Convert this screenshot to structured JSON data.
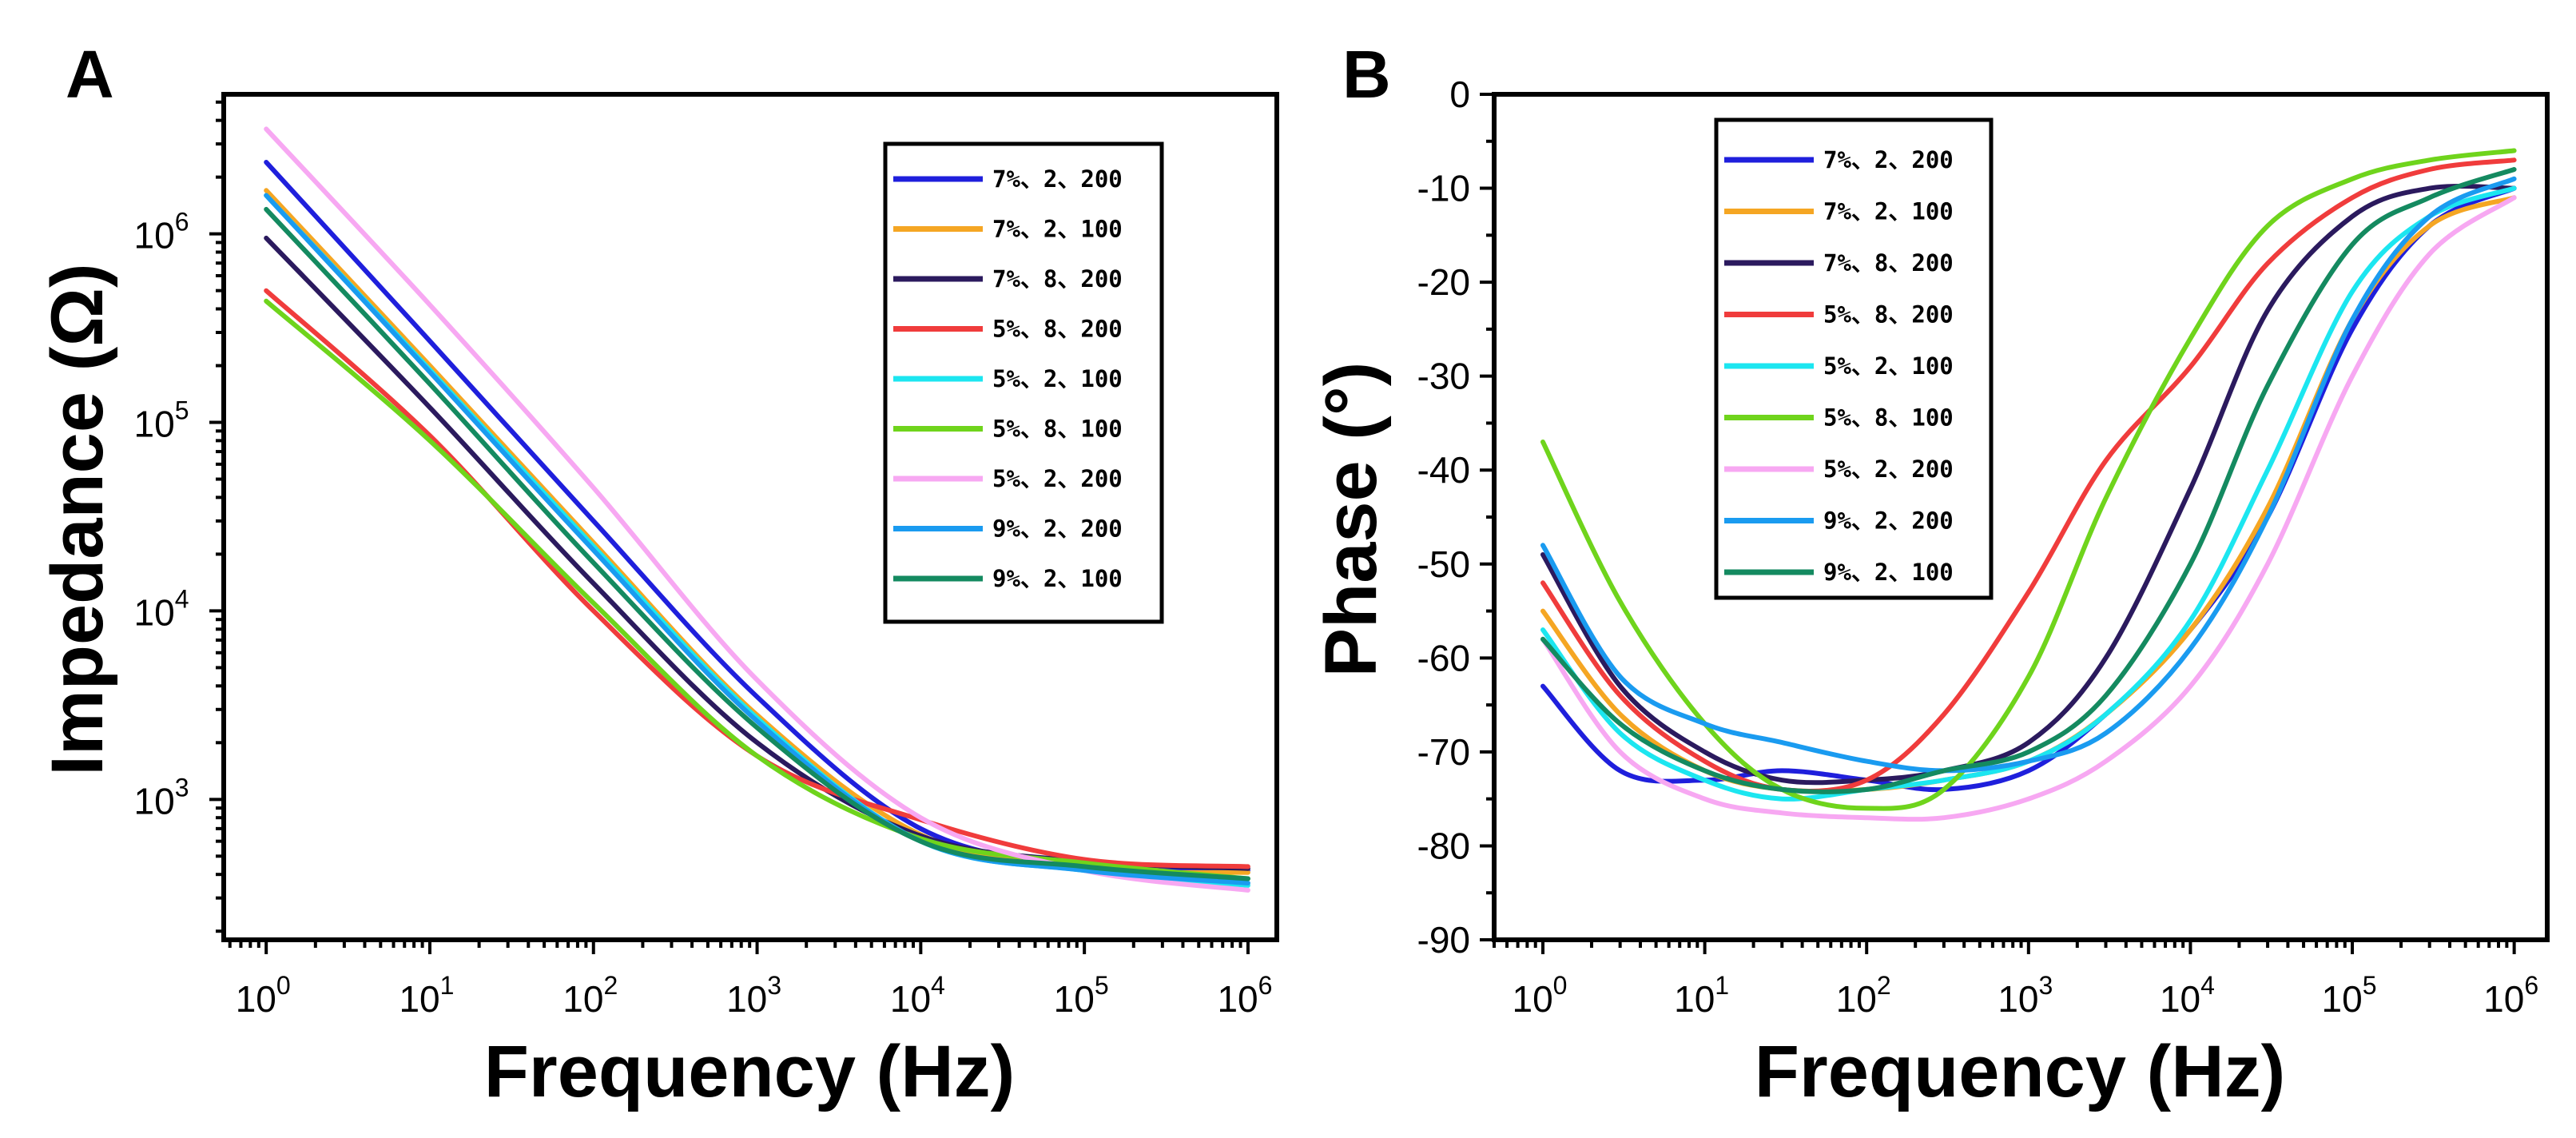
{
  "chart_data": [
    {
      "panel": "A",
      "type": "line",
      "xscale": "log",
      "yscale": "log",
      "xlabel": "Frequency (Hz)",
      "ylabel": "Impedance (Ω)",
      "xlim": [
        0.55,
        1500000
      ],
      "ylim": [
        180,
        5500000
      ],
      "xticks": [
        {
          "v": 1,
          "base": "10",
          "exp": "0"
        },
        {
          "v": 10,
          "base": "10",
          "exp": "1"
        },
        {
          "v": 100,
          "base": "10",
          "exp": "2"
        },
        {
          "v": 1000,
          "base": "10",
          "exp": "3"
        },
        {
          "v": 10000,
          "base": "10",
          "exp": "4"
        },
        {
          "v": 100000,
          "base": "10",
          "exp": "5"
        },
        {
          "v": 1000000,
          "base": "10",
          "exp": "6"
        }
      ],
      "yticks": [
        {
          "v": 1000,
          "base": "10",
          "exp": "3"
        },
        {
          "v": 10000,
          "base": "10",
          "exp": "4"
        },
        {
          "v": 100000,
          "base": "10",
          "exp": "5"
        },
        {
          "v": 1000000,
          "base": "10",
          "exp": "6"
        }
      ],
      "legend_position": "top-right",
      "series": [
        {
          "name": "7%、2、200",
          "color": "#1f1fdc",
          "x": [
            1,
            10,
            100,
            1000,
            10000,
            100000,
            1000000
          ],
          "values": [
            2400000,
            270000,
            30000,
            3500,
            700,
            440,
            420
          ]
        },
        {
          "name": "7%、2、100",
          "color": "#f5a623",
          "x": [
            1,
            10,
            100,
            1000,
            10000,
            100000,
            1000000
          ],
          "values": [
            1700000,
            200000,
            23000,
            2800,
            650,
            430,
            410
          ]
        },
        {
          "name": "7%、8、200",
          "color": "#2b1a5e",
          "x": [
            1,
            10,
            100,
            1000,
            10000,
            100000,
            1000000
          ],
          "values": [
            950000,
            120000,
            14000,
            2000,
            640,
            470,
            430
          ]
        },
        {
          "name": "5%、8、200",
          "color": "#f03c3c",
          "x": [
            1,
            10,
            100,
            1000,
            10000,
            100000,
            1000000
          ],
          "values": [
            500000,
            85000,
            10000,
            1700,
            780,
            480,
            440
          ]
        },
        {
          "name": "5%、2、100",
          "color": "#1ce6f0",
          "x": [
            1,
            10,
            100,
            1000,
            10000,
            100000,
            1000000
          ],
          "values": [
            1600000,
            190000,
            22000,
            2700,
            600,
            420,
            350
          ]
        },
        {
          "name": "5%、8、100",
          "color": "#6fd41c",
          "x": [
            1,
            10,
            100,
            1000,
            10000,
            100000,
            1000000
          ],
          "values": [
            440000,
            80000,
            11000,
            1700,
            620,
            460,
            380
          ]
        },
        {
          "name": "5%、2、200",
          "color": "#f7a8f2",
          "x": [
            1,
            10,
            100,
            1000,
            10000,
            100000,
            1000000
          ],
          "values": [
            3600000,
            420000,
            45000,
            4300,
            800,
            420,
            330
          ]
        },
        {
          "name": "9%、2、200",
          "color": "#1a9bf0",
          "x": [
            1,
            10,
            100,
            1000,
            10000,
            100000,
            1000000
          ],
          "values": [
            1600000,
            185000,
            21000,
            2600,
            600,
            420,
            360
          ]
        },
        {
          "name": "9%、2、100",
          "color": "#148a60",
          "x": [
            1,
            10,
            100,
            1000,
            10000,
            100000,
            1000000
          ],
          "values": [
            1350000,
            160000,
            18000,
            2400,
            600,
            440,
            380
          ]
        }
      ]
    },
    {
      "panel": "B",
      "type": "line",
      "xscale": "log",
      "yscale": "linear",
      "xlabel": "Frequency (Hz)",
      "ylabel": "Phase (°)",
      "xlim": [
        0.5,
        1600000
      ],
      "ylim": [
        -90,
        0
      ],
      "xticks": [
        {
          "v": 1,
          "base": "10",
          "exp": "0"
        },
        {
          "v": 10,
          "base": "10",
          "exp": "1"
        },
        {
          "v": 100,
          "base": "10",
          "exp": "2"
        },
        {
          "v": 1000,
          "base": "10",
          "exp": "3"
        },
        {
          "v": 10000,
          "base": "10",
          "exp": "4"
        },
        {
          "v": 100000,
          "base": "10",
          "exp": "5"
        },
        {
          "v": 1000000,
          "base": "10",
          "exp": "6"
        }
      ],
      "yticks": [
        {
          "v": 0,
          "label": "0"
        },
        {
          "v": -10,
          "label": "-10"
        },
        {
          "v": -20,
          "label": "-20"
        },
        {
          "v": -30,
          "label": "-30"
        },
        {
          "v": -40,
          "label": "-40"
        },
        {
          "v": -50,
          "label": "-50"
        },
        {
          "v": -60,
          "label": "-60"
        },
        {
          "v": -70,
          "label": "-70"
        },
        {
          "v": -80,
          "label": "-80"
        },
        {
          "v": -90,
          "label": "-90"
        }
      ],
      "legend_position": "top-left",
      "series": [
        {
          "name": "7%、2、200",
          "color": "#1f1fdc",
          "x": [
            1,
            3,
            10,
            30,
            100,
            300,
            1000,
            3000,
            10000,
            30000,
            100000,
            300000,
            1000000
          ],
          "values": [
            -63,
            -72,
            -73,
            -72,
            -73,
            -74,
            -72,
            -66,
            -57,
            -45,
            -25,
            -14,
            -10
          ]
        },
        {
          "name": "7%、2、100",
          "color": "#f5a623",
          "x": [
            1,
            3,
            10,
            30,
            100,
            300,
            1000,
            3000,
            10000,
            30000,
            100000,
            300000,
            1000000
          ],
          "values": [
            -55,
            -66,
            -72,
            -74,
            -74,
            -73,
            -71,
            -66,
            -57,
            -44,
            -24,
            -14,
            -11
          ]
        },
        {
          "name": "7%、8、200",
          "color": "#2b1a5e",
          "x": [
            1,
            3,
            10,
            30,
            100,
            300,
            1000,
            3000,
            10000,
            30000,
            100000,
            300000,
            1000000
          ],
          "values": [
            -49,
            -63,
            -70,
            -73,
            -73,
            -72,
            -69,
            -60,
            -42,
            -23,
            -13,
            -10,
            -10
          ]
        },
        {
          "name": "5%、8、200",
          "color": "#f03c3c",
          "x": [
            1,
            3,
            10,
            30,
            100,
            300,
            1000,
            3000,
            10000,
            30000,
            100000,
            300000,
            1000000
          ],
          "values": [
            -52,
            -64,
            -71,
            -74,
            -73,
            -66,
            -53,
            -39,
            -29,
            -18,
            -11,
            -8,
            -7
          ]
        },
        {
          "name": "5%、2、100",
          "color": "#1ce6f0",
          "x": [
            1,
            3,
            10,
            30,
            100,
            300,
            1000,
            3000,
            10000,
            30000,
            100000,
            300000,
            1000000
          ],
          "values": [
            -57,
            -68,
            -73,
            -75,
            -74,
            -73,
            -71,
            -66,
            -56,
            -40,
            -21,
            -13,
            -10
          ]
        },
        {
          "name": "5%、8、100",
          "color": "#6fd41c",
          "x": [
            1,
            3,
            10,
            30,
            100,
            300,
            1000,
            3000,
            10000,
            30000,
            100000,
            300000,
            1000000
          ],
          "values": [
            -37,
            -54,
            -67,
            -74,
            -76,
            -74,
            -62,
            -43,
            -26,
            -14,
            -9,
            -7,
            -6
          ]
        },
        {
          "name": "5%、2、200",
          "color": "#f7a8f2",
          "x": [
            1,
            3,
            10,
            30,
            100,
            300,
            1000,
            3000,
            10000,
            30000,
            100000,
            300000,
            1000000
          ],
          "values": [
            -58,
            -70,
            -75,
            -76.5,
            -77,
            -77,
            -75,
            -71,
            -63,
            -50,
            -30,
            -17,
            -11
          ]
        },
        {
          "name": "9%、2、200",
          "color": "#1a9bf0",
          "x": [
            1,
            3,
            10,
            30,
            100,
            300,
            1000,
            3000,
            10000,
            30000,
            100000,
            300000,
            1000000
          ],
          "values": [
            -48,
            -62,
            -67,
            -69,
            -71,
            -72,
            -71,
            -68,
            -59,
            -45,
            -24,
            -13,
            -9
          ]
        },
        {
          "name": "9%、2、100",
          "color": "#148a60",
          "x": [
            1,
            3,
            10,
            30,
            100,
            300,
            1000,
            3000,
            10000,
            30000,
            100000,
            300000,
            1000000
          ],
          "values": [
            -58,
            -67,
            -72,
            -74,
            -74,
            -72,
            -70,
            -64,
            -50,
            -31,
            -16,
            -11,
            -8
          ]
        }
      ]
    }
  ]
}
